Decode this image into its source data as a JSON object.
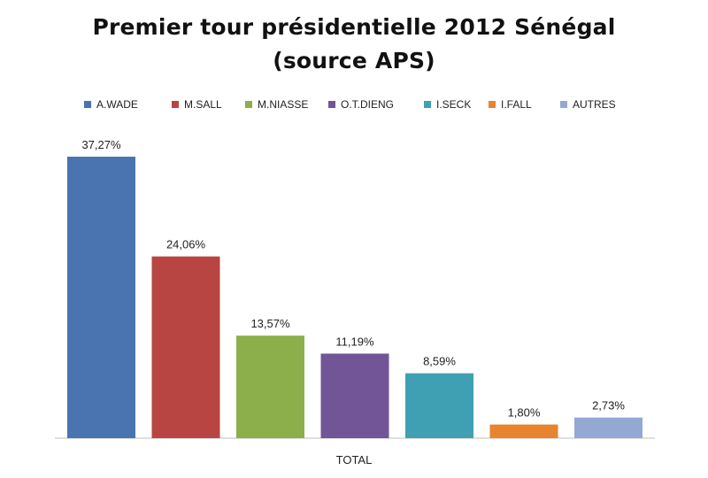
{
  "chart_data": {
    "type": "bar",
    "title_lines": [
      "Premier tour présidentielle 2012 Sénégal",
      "(source APS)"
    ],
    "categories": [
      "TOTAL"
    ],
    "series": [
      {
        "name": "A.WADE",
        "values": [
          37.27
        ],
        "label": "37,27%",
        "color": "#4a74b0"
      },
      {
        "name": "M.SALL",
        "values": [
          24.06
        ],
        "label": "24,06%",
        "color": "#b84542"
      },
      {
        "name": "M.NIASSE",
        "values": [
          13.57
        ],
        "label": "13,57%",
        "color": "#8cae4b"
      },
      {
        "name": "O.T.DIENG",
        "values": [
          11.19
        ],
        "label": "11,19%",
        "color": "#715596"
      },
      {
        "name": "I.SECK",
        "values": [
          8.59
        ],
        "label": "8,59%",
        "color": "#3fa0b3"
      },
      {
        "name": "I.FALL",
        "values": [
          1.8
        ],
        "label": "1,80%",
        "color": "#e8832e"
      },
      {
        "name": "AUTRES",
        "values": [
          2.73
        ],
        "label": "2,73%",
        "color": "#93a9d4"
      }
    ],
    "xlabel": "TOTAL",
    "ylabel": "",
    "legend_position": "top",
    "grid": false
  }
}
